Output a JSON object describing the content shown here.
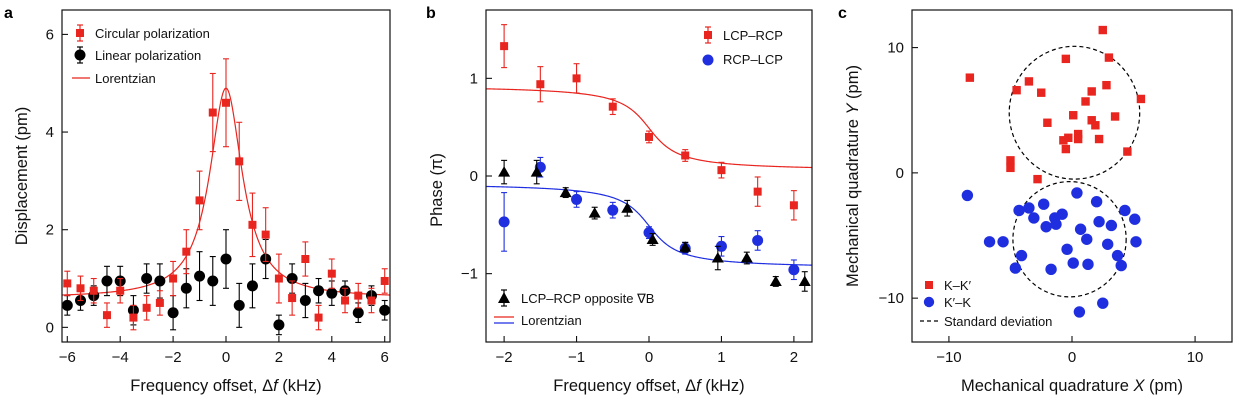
{
  "colors": {
    "red": "#e8251f",
    "black": "#000000",
    "blue": "#1f2fe0",
    "axis": "#111111"
  },
  "chart_data": [
    {
      "panel": "a",
      "type": "scatter",
      "xlabel_pre": "Frequency offset, Δ",
      "xlabel_var": "f",
      "xlabel_post": " (kHz)",
      "ylabel": "Displacement (pm)",
      "xlim": [
        -6.2,
        6.2
      ],
      "ylim": [
        -0.3,
        6.5
      ],
      "xticks": [
        -6,
        -4,
        -2,
        0,
        2,
        4,
        6
      ],
      "yticks": [
        0,
        2,
        4,
        6
      ],
      "legend_position": "top-left",
      "series": [
        {
          "name": "Circular polarization",
          "marker": "square",
          "color": "#e8251f",
          "x": [
            -6,
            -5.5,
            -5,
            -4.5,
            -4,
            -3.5,
            -3,
            -2.5,
            -2,
            -1.5,
            -1,
            -0.5,
            0,
            0.5,
            1,
            1.5,
            2,
            2.5,
            3,
            3.5,
            4,
            4.5,
            5,
            5.5,
            6
          ],
          "y": [
            0.9,
            0.8,
            0.75,
            0.25,
            0.75,
            0.2,
            0.4,
            0.5,
            1.0,
            1.55,
            2.6,
            4.4,
            4.6,
            3.4,
            2.1,
            1.9,
            1.0,
            0.6,
            1.4,
            0.2,
            1.1,
            0.55,
            0.65,
            0.55,
            0.95
          ],
          "err": [
            0.25,
            0.25,
            0.25,
            0.25,
            0.25,
            0.25,
            0.25,
            0.25,
            0.35,
            0.45,
            0.6,
            0.8,
            0.9,
            0.8,
            0.65,
            0.55,
            0.5,
            0.35,
            0.35,
            0.25,
            0.3,
            0.25,
            0.25,
            0.25,
            0.25
          ]
        },
        {
          "name": "Linear polarization",
          "marker": "circle",
          "color": "#000000",
          "x": [
            -6,
            -5.5,
            -5,
            -4.5,
            -4,
            -3.5,
            -3,
            -2.5,
            -2,
            -1.5,
            -1,
            -0.5,
            0,
            0.5,
            1,
            1.5,
            2,
            2.5,
            3,
            3.5,
            4,
            4.5,
            5,
            5.5,
            6
          ],
          "y": [
            0.45,
            0.55,
            0.65,
            0.95,
            0.95,
            0.35,
            1.0,
            0.95,
            0.3,
            0.8,
            1.05,
            0.95,
            1.4,
            0.45,
            0.85,
            1.4,
            0.05,
            1.0,
            0.55,
            0.75,
            0.7,
            0.75,
            0.3,
            0.65,
            0.35
          ],
          "err": [
            0.2,
            0.2,
            0.2,
            0.3,
            0.3,
            0.3,
            0.3,
            0.35,
            0.35,
            0.4,
            0.5,
            0.5,
            0.6,
            0.45,
            0.45,
            0.4,
            0.2,
            0.3,
            0.35,
            0.25,
            0.25,
            0.2,
            0.2,
            0.2,
            0.2
          ]
        },
        {
          "name": "Lorentzian",
          "type": "line",
          "color": "#e8251f",
          "center": 0,
          "hwhm": 0.75,
          "amplitude": 4.3,
          "offset": 0.6
        }
      ]
    },
    {
      "panel": "b",
      "type": "scatter",
      "xlabel_pre": "Frequency offset, Δ",
      "xlabel_var": "f",
      "xlabel_post": " (kHz)",
      "ylabel": "Phase (π)",
      "xlim": [
        -2.25,
        2.25
      ],
      "ylim": [
        -1.7,
        1.7
      ],
      "xticks": [
        -2,
        -1,
        0,
        1,
        2
      ],
      "yticks": [
        -1,
        0,
        1
      ],
      "legend_position": "top-right",
      "series": [
        {
          "name": "LCP–RCP",
          "marker": "square",
          "color": "#e8251f",
          "x": [
            -2,
            -1.5,
            -1,
            -0.5,
            0,
            0.5,
            1,
            1.5,
            2
          ],
          "y": [
            1.33,
            0.94,
            1.0,
            0.71,
            0.4,
            0.21,
            0.06,
            -0.16,
            -0.3
          ],
          "err": [
            0.22,
            0.18,
            0.15,
            0.08,
            0.06,
            0.06,
            0.08,
            0.15,
            0.15
          ]
        },
        {
          "name": "RCP–LCP",
          "marker": "circle",
          "color": "#1f2fe0",
          "x": [
            -2,
            -1.5,
            -1,
            -0.5,
            0,
            0.5,
            1,
            1.5,
            2
          ],
          "y": [
            -0.47,
            0.09,
            -0.24,
            -0.35,
            -0.58,
            -0.74,
            -0.72,
            -0.66,
            -0.96
          ],
          "err": [
            0.3,
            0.1,
            0.08,
            0.08,
            0.06,
            0.06,
            0.1,
            0.1,
            0.1
          ]
        },
        {
          "name": "LCP–RCP opposite ∇B",
          "marker": "triangle",
          "color": "#000000",
          "x": [
            -2,
            -1.55,
            -1.15,
            -0.75,
            -0.3,
            0.05,
            0.5,
            0.95,
            1.35,
            1.75,
            2.15
          ],
          "y": [
            0.04,
            0.04,
            -0.17,
            -0.38,
            -0.33,
            -0.65,
            -0.73,
            -0.84,
            -0.84,
            -1.08,
            -1.08
          ],
          "err": [
            0.12,
            0.12,
            0.05,
            0.06,
            0.08,
            0.06,
            0.05,
            0.12,
            0.06,
            0.05,
            0.1
          ]
        },
        {
          "name": "Lorentzian",
          "type": "line",
          "color": "#e8251f",
          "center": 0,
          "hwhm": 0.3,
          "high": 0.93,
          "low": 0.05
        },
        {
          "name": "Lorentzian",
          "type": "line",
          "color": "#1f2fe0",
          "center": 0,
          "hwhm": 0.3,
          "high": -0.07,
          "low": -0.95
        }
      ]
    },
    {
      "panel": "c",
      "type": "scatter",
      "xlabel_pre": "Mechanical quadrature ",
      "xlabel_var": "X",
      "xlabel_post": " (pm)",
      "ylabel_pre": "Mechanical quadrature ",
      "ylabel_var": "Y",
      "ylabel_post": " (pm)",
      "xlim": [
        -13,
        13
      ],
      "ylim": [
        -13.5,
        13
      ],
      "xticks": [
        -10,
        0,
        10
      ],
      "yticks": [
        -10,
        0,
        10
      ],
      "legend_position": "bottom-left",
      "series": [
        {
          "name": "K–K′",
          "marker": "square",
          "color": "#e8251f",
          "x": [
            -8.3,
            -4.5,
            -3.5,
            -5.0,
            -5.0,
            -2.5,
            -2.0,
            -0.5,
            -0.3,
            0.1,
            0.5,
            0.5,
            1.1,
            1.6,
            1.6,
            1.9,
            2.2,
            2.5,
            2.8,
            3.0,
            3.5,
            4.5,
            5.6,
            -0.5,
            -2.8,
            -0.7
          ],
          "x_note": "",
          "y": [
            7.6,
            6.6,
            7.3,
            1.0,
            0.4,
            6.4,
            4.0,
            9.1,
            2.8,
            4.6,
            3.1,
            2.7,
            5.7,
            6.5,
            4.2,
            3.8,
            2.7,
            11.4,
            7.0,
            9.2,
            4.5,
            1.7,
            5.9,
            1.9,
            -0.5,
            2.6
          ]
        },
        {
          "name": "K′–K",
          "marker": "circle",
          "color": "#1f2fe0",
          "x": [
            -8.5,
            -6.7,
            -5.6,
            -4.3,
            -4.1,
            -3.1,
            -2.1,
            -2.3,
            -1.7,
            -1.4,
            -0.8,
            -0.4,
            0.1,
            0.4,
            0.7,
            1.2,
            1.3,
            2.0,
            2.2,
            2.9,
            3.2,
            3.7,
            4.3,
            5.1,
            5.2,
            0.6,
            -4.6,
            2.5,
            -1.3,
            -3.5,
            4.0
          ],
          "y": [
            -1.8,
            -5.5,
            -5.5,
            -3.0,
            -6.6,
            -3.6,
            -4.3,
            -2.5,
            -7.7,
            -3.6,
            -3.3,
            -6.1,
            -7.2,
            -1.6,
            -4.5,
            -5.3,
            -7.3,
            -2.3,
            -3.9,
            -5.7,
            -4.2,
            -6.6,
            -3.0,
            -3.7,
            -5.5,
            -11.1,
            -7.6,
            -10.4,
            -4.1,
            -2.8,
            -7.4
          ]
        },
        {
          "name": "Standard deviation",
          "type": "circle-outline",
          "color": "#000000",
          "circles": [
            {
              "cx": 0.2,
              "cy": 4.8,
              "r": 5.3
            },
            {
              "cx": -0.2,
              "cy": -5.3,
              "r": 4.6
            }
          ]
        }
      ]
    }
  ]
}
